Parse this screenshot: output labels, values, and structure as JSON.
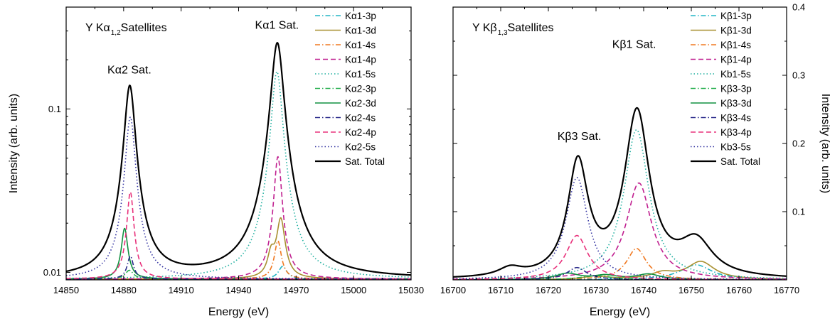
{
  "chart_data": [
    {
      "type": "line",
      "title_main": "Y Kα",
      "title_sub": "1,2",
      "title_rest": " Satellites",
      "xlabel": "Energy (eV)",
      "ylabel": "Intensity (arb. units)",
      "xlim": [
        14850,
        15030
      ],
      "ylim": [
        0.009,
        0.42
      ],
      "yscale": "log",
      "xticks": [
        14850,
        14880,
        14910,
        14940,
        14970,
        15000,
        15030
      ],
      "yticks": [
        {
          "value": 0.01,
          "label": "0.01"
        },
        {
          "value": 0.1,
          "label": "0.1"
        }
      ],
      "baseline": 0.0091,
      "annotations": [
        {
          "text": "Kα2 Sat.",
          "x": 14883,
          "y": 0.165
        },
        {
          "text": "Kα1 Sat.",
          "x": 14960,
          "y": 0.31
        }
      ],
      "legend": "top-right",
      "series": [
        {
          "name": "Kα1-3p",
          "color": "#22b5c5",
          "dash": "dashdot",
          "peaks": [
            {
              "x": 14963,
              "h": 0.0018,
              "w": 2.5
            }
          ]
        },
        {
          "name": "Kα1-3d",
          "color": "#a89030",
          "dash": "solid",
          "peaks": [
            {
              "x": 14962,
              "h": 0.012,
              "w": 2.3
            },
            {
              "x": 14957,
              "h": 0.0035,
              "w": 2.0
            }
          ]
        },
        {
          "name": "Kα1-4s",
          "color": "#f07820",
          "dash": "dashdot",
          "peaks": [
            {
              "x": 14960.5,
              "h": 0.0065,
              "w": 2.0
            }
          ]
        },
        {
          "name": "Kα1-4p",
          "color": "#c02090",
          "dash": "dash",
          "peaks": [
            {
              "x": 14960.5,
              "h": 0.042,
              "w": 2.0
            }
          ]
        },
        {
          "name": "Kα1-5s",
          "color": "#20b0a0",
          "dash": "dot",
          "peaks": [
            {
              "x": 14960,
              "h": 0.16,
              "w": 2.8
            }
          ]
        },
        {
          "name": "Kα2-3p",
          "color": "#28b050",
          "dash": "dashdot",
          "peaks": [
            {
              "x": 14883,
              "h": 0.0012,
              "w": 2.5
            }
          ]
        },
        {
          "name": "Kα2-3d",
          "color": "#109040",
          "dash": "solid",
          "peaks": [
            {
              "x": 14880.5,
              "h": 0.0095,
              "w": 1.8
            }
          ]
        },
        {
          "name": "Kα2-4s",
          "color": "#2a2a8a",
          "dash": "dashdot",
          "peaks": [
            {
              "x": 14883.5,
              "h": 0.0035,
              "w": 1.8
            }
          ]
        },
        {
          "name": "Kα2-4p",
          "color": "#e8307a",
          "dash": "dash",
          "peaks": [
            {
              "x": 14883.5,
              "h": 0.022,
              "w": 1.8
            }
          ]
        },
        {
          "name": "Kα2-5s",
          "color": "#3030a0",
          "dash": "dot",
          "peaks": [
            {
              "x": 14883.5,
              "h": 0.08,
              "w": 2.5
            }
          ]
        },
        {
          "name": "Sat. Total",
          "color": "#000000",
          "dash": "solid",
          "peaks": [
            {
              "x": 14883.2,
              "h": 0.13,
              "w": 2.7
            },
            {
              "x": 14960.2,
              "h": 0.245,
              "w": 3.1
            }
          ]
        }
      ]
    },
    {
      "type": "line",
      "title_main": "Y Kβ",
      "title_sub": "1,3",
      "title_rest": " Satellites",
      "xlabel": "Energy (eV)",
      "ylabel": "Intensity (arb. units)",
      "xlim": [
        16700,
        16770
      ],
      "ylim": [
        0.0,
        0.4
      ],
      "yscale": "linear",
      "xticks": [
        16700,
        16710,
        16720,
        16730,
        16740,
        16750,
        16760,
        16770
      ],
      "yticks": [
        {
          "value": 0.1,
          "label": "0.1"
        },
        {
          "value": 0.2,
          "label": "0.2"
        },
        {
          "value": 0.3,
          "label": "0.3"
        },
        {
          "value": 0.4,
          "label": "0.4"
        }
      ],
      "baseline": 0.0,
      "annotations": [
        {
          "text": "Kβ3 Sat.",
          "x": 16726.5,
          "y": 0.205
        },
        {
          "text": "Kβ1 Sat.",
          "x": 16738,
          "y": 0.34
        }
      ],
      "legend": "top-right",
      "series": [
        {
          "name": "Kβ1-3p",
          "color": "#22b5c5",
          "dash": "dashdot",
          "peaks": [
            {
              "x": 16751,
              "h": 0.022,
              "w": 4
            }
          ]
        },
        {
          "name": "Kβ1-3d",
          "color": "#a89030",
          "dash": "solid",
          "peaks": [
            {
              "x": 16752,
              "h": 0.026,
              "w": 3.5
            },
            {
              "x": 16744,
              "h": 0.009,
              "w": 3
            },
            {
              "x": 16730,
              "h": 0.005,
              "w": 3
            }
          ]
        },
        {
          "name": "Kβ1-4s",
          "color": "#f07820",
          "dash": "dashdot",
          "peaks": [
            {
              "x": 16738.5,
              "h": 0.046,
              "w": 2.5
            }
          ]
        },
        {
          "name": "Kβ1-4p",
          "color": "#c02090",
          "dash": "dash",
          "peaks": [
            {
              "x": 16739,
              "h": 0.142,
              "w": 3.2
            }
          ]
        },
        {
          "name": "Kb1-5s",
          "color": "#20b0a0",
          "dash": "dot",
          "peaks": [
            {
              "x": 16738.5,
              "h": 0.22,
              "w": 3.2
            }
          ]
        },
        {
          "name": "Kβ3-3p",
          "color": "#28b050",
          "dash": "dashdot",
          "peaks": [
            {
              "x": 16730,
              "h": 0.006,
              "w": 4
            }
          ]
        },
        {
          "name": "Kβ3-3d",
          "color": "#109040",
          "dash": "solid",
          "peaks": [
            {
              "x": 16724,
              "h": 0.009,
              "w": 3
            },
            {
              "x": 16732,
              "h": 0.006,
              "w": 3
            },
            {
              "x": 16741,
              "h": 0.008,
              "w": 3
            }
          ]
        },
        {
          "name": "Kβ3-4s",
          "color": "#2a2a8a",
          "dash": "dashdot",
          "peaks": [
            {
              "x": 16726,
              "h": 0.018,
              "w": 2.5
            }
          ]
        },
        {
          "name": "Kβ3-4p",
          "color": "#e8307a",
          "dash": "dash",
          "peaks": [
            {
              "x": 16726,
              "h": 0.065,
              "w": 2.8
            }
          ]
        },
        {
          "name": "Kb3-5s",
          "color": "#3030a0",
          "dash": "dot",
          "peaks": [
            {
              "x": 16726,
              "h": 0.15,
              "w": 2.8
            }
          ]
        },
        {
          "name": "Sat. Total",
          "color": "#000000",
          "dash": "solid",
          "peaks": [
            {
              "x": 16738.6,
              "h": 0.24,
              "w": 3.2
            },
            {
              "x": 16726.2,
              "h": 0.165,
              "w": 2.6
            },
            {
              "x": 16751,
              "h": 0.05,
              "w": 4.2
            },
            {
              "x": 16712,
              "h": 0.012,
              "w": 3
            }
          ]
        }
      ]
    }
  ]
}
